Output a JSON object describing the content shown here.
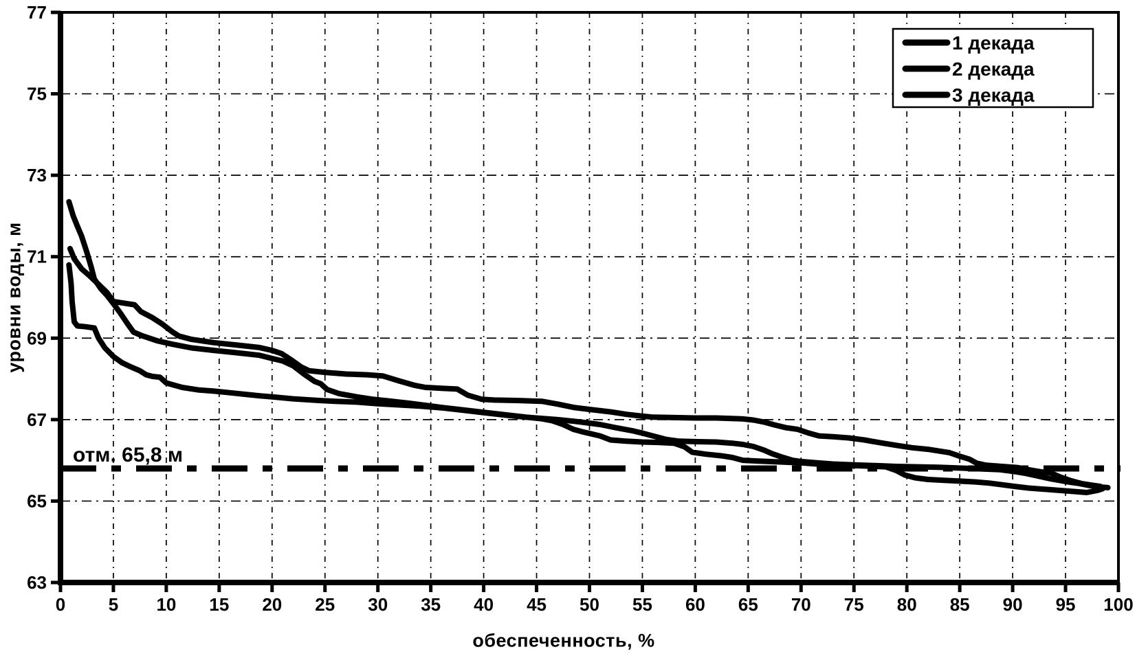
{
  "chart_data": {
    "type": "line",
    "title": "",
    "xlabel": "обеспеченность, %",
    "ylabel": "уровни воды, м",
    "xlim": [
      0,
      100
    ],
    "ylim": [
      63,
      77
    ],
    "xticks": [
      0,
      5,
      10,
      15,
      20,
      25,
      30,
      35,
      40,
      45,
      50,
      55,
      60,
      65,
      70,
      75,
      80,
      85,
      90,
      95,
      100
    ],
    "yticks": [
      63,
      65,
      67,
      69,
      71,
      73,
      75,
      77
    ],
    "grid": {
      "horizontal": [
        65,
        67,
        69,
        71,
        73,
        75
      ],
      "vertical": [
        5,
        10,
        15,
        20,
        25,
        30,
        35,
        40,
        45,
        50,
        55,
        60,
        65,
        70,
        75,
        80,
        85,
        90,
        95
      ]
    },
    "ink_color": "#000000",
    "background_color": "#ffffff",
    "reference_line": {
      "value": 65.8,
      "label": "отм. 65,8 м",
      "style": "dash-dot-thick"
    },
    "legend": {
      "position": "top-right",
      "entries": [
        "1 декада",
        "2 декада",
        "3 декада"
      ]
    },
    "series": [
      {
        "name": "1 декада",
        "color": "#000000",
        "points": [
          [
            0.8,
            72.35
          ],
          [
            1.2,
            72.0
          ],
          [
            1.6,
            71.75
          ],
          [
            2.0,
            71.5
          ],
          [
            2.5,
            71.1
          ],
          [
            2.9,
            70.75
          ],
          [
            3.2,
            70.45
          ],
          [
            3.8,
            70.22
          ],
          [
            4.4,
            70.05
          ],
          [
            5.0,
            69.85
          ],
          [
            5.7,
            69.6
          ],
          [
            6.4,
            69.33
          ],
          [
            6.9,
            69.15
          ],
          [
            7.7,
            69.06
          ],
          [
            9.2,
            68.93
          ],
          [
            10.6,
            68.85
          ],
          [
            12.4,
            68.76
          ],
          [
            14.5,
            68.7
          ],
          [
            16.7,
            68.64
          ],
          [
            18.8,
            68.58
          ],
          [
            20.0,
            68.5
          ],
          [
            21.0,
            68.44
          ],
          [
            22.0,
            68.32
          ],
          [
            23.0,
            68.12
          ],
          [
            24.0,
            67.94
          ],
          [
            24.6,
            67.88
          ],
          [
            25.2,
            67.74
          ],
          [
            26.3,
            67.64
          ],
          [
            28.0,
            67.56
          ],
          [
            29.5,
            67.5
          ],
          [
            31.0,
            67.46
          ],
          [
            33.0,
            67.4
          ],
          [
            34.5,
            67.35
          ],
          [
            36.0,
            67.3
          ],
          [
            38.0,
            67.24
          ],
          [
            40.0,
            67.18
          ],
          [
            42.0,
            67.12
          ],
          [
            44.0,
            67.06
          ],
          [
            45.5,
            67.02
          ],
          [
            46.5,
            66.97
          ],
          [
            47.5,
            66.88
          ],
          [
            48.5,
            66.76
          ],
          [
            49.5,
            66.69
          ],
          [
            51.0,
            66.6
          ],
          [
            52.0,
            66.5
          ],
          [
            53.5,
            66.47
          ],
          [
            55.0,
            66.45
          ],
          [
            56.5,
            66.44
          ],
          [
            58.0,
            66.42
          ],
          [
            59.0,
            66.33
          ],
          [
            59.7,
            66.2
          ],
          [
            61.0,
            66.15
          ],
          [
            62.5,
            66.11
          ],
          [
            63.5,
            66.07
          ],
          [
            64.5,
            66.0
          ],
          [
            66.0,
            65.98
          ],
          [
            68.0,
            65.96
          ],
          [
            70.0,
            65.94
          ],
          [
            72.0,
            65.9
          ],
          [
            74.0,
            65.88
          ],
          [
            76.0,
            65.86
          ],
          [
            78.0,
            65.84
          ],
          [
            79.0,
            65.75
          ],
          [
            79.8,
            65.64
          ],
          [
            80.8,
            65.57
          ],
          [
            82.0,
            65.53
          ],
          [
            83.5,
            65.51
          ],
          [
            85.0,
            65.49
          ],
          [
            86.5,
            65.47
          ],
          [
            87.8,
            65.44
          ],
          [
            89.0,
            65.4
          ],
          [
            90.2,
            65.36
          ],
          [
            91.5,
            65.32
          ],
          [
            93.0,
            65.29
          ],
          [
            94.5,
            65.26
          ],
          [
            96.0,
            65.23
          ],
          [
            97.0,
            65.21
          ],
          [
            98.0,
            65.26
          ],
          [
            98.5,
            65.3
          ]
        ]
      },
      {
        "name": "2 декада",
        "color": "#000000",
        "points": [
          [
            0.9,
            71.2
          ],
          [
            1.3,
            70.95
          ],
          [
            2.0,
            70.7
          ],
          [
            2.8,
            70.52
          ],
          [
            3.6,
            70.32
          ],
          [
            4.4,
            70.12
          ],
          [
            5.0,
            69.9
          ],
          [
            6.0,
            69.86
          ],
          [
            7.0,
            69.82
          ],
          [
            7.6,
            69.65
          ],
          [
            8.7,
            69.5
          ],
          [
            9.6,
            69.35
          ],
          [
            10.6,
            69.15
          ],
          [
            11.2,
            69.05
          ],
          [
            12.4,
            68.97
          ],
          [
            14.5,
            68.89
          ],
          [
            16.7,
            68.83
          ],
          [
            18.8,
            68.77
          ],
          [
            20.0,
            68.7
          ],
          [
            20.9,
            68.62
          ],
          [
            21.9,
            68.45
          ],
          [
            22.7,
            68.3
          ],
          [
            23.5,
            68.2
          ],
          [
            25.0,
            68.16
          ],
          [
            27.0,
            68.12
          ],
          [
            29.0,
            68.1
          ],
          [
            30.5,
            68.07
          ],
          [
            32.0,
            67.95
          ],
          [
            33.5,
            67.84
          ],
          [
            34.5,
            67.79
          ],
          [
            36.0,
            67.77
          ],
          [
            37.5,
            67.75
          ],
          [
            38.5,
            67.6
          ],
          [
            39.8,
            67.5
          ],
          [
            41.0,
            67.48
          ],
          [
            43.0,
            67.47
          ],
          [
            45.5,
            67.45
          ],
          [
            47.0,
            67.38
          ],
          [
            48.5,
            67.3
          ],
          [
            50.0,
            67.25
          ],
          [
            52.0,
            67.19
          ],
          [
            53.5,
            67.13
          ],
          [
            54.8,
            67.09
          ],
          [
            56.0,
            67.06
          ],
          [
            58.0,
            67.05
          ],
          [
            60.0,
            67.04
          ],
          [
            62.0,
            67.04
          ],
          [
            64.4,
            67.02
          ],
          [
            65.5,
            66.99
          ],
          [
            66.5,
            66.94
          ],
          [
            67.5,
            66.87
          ],
          [
            68.6,
            66.8
          ],
          [
            69.7,
            66.76
          ],
          [
            70.7,
            66.67
          ],
          [
            71.7,
            66.6
          ],
          [
            73.0,
            66.58
          ],
          [
            74.5,
            66.55
          ],
          [
            76.0,
            66.5
          ],
          [
            77.5,
            66.43
          ],
          [
            79.2,
            66.36
          ],
          [
            80.5,
            66.31
          ],
          [
            82.0,
            66.27
          ],
          [
            84.0,
            66.19
          ],
          [
            85.0,
            66.1
          ],
          [
            85.9,
            66.03
          ],
          [
            86.6,
            65.93
          ],
          [
            87.5,
            65.88
          ],
          [
            89.0,
            65.85
          ],
          [
            90.5,
            65.82
          ],
          [
            91.5,
            65.77
          ],
          [
            92.6,
            65.72
          ],
          [
            93.6,
            65.69
          ],
          [
            94.5,
            65.59
          ],
          [
            95.5,
            65.5
          ],
          [
            96.5,
            65.43
          ],
          [
            97.5,
            65.39
          ],
          [
            98.3,
            65.36
          ]
        ]
      },
      {
        "name": "3 декада",
        "color": "#000000",
        "points": [
          [
            0.8,
            70.8
          ],
          [
            1.0,
            70.35
          ],
          [
            1.1,
            69.9
          ],
          [
            1.3,
            69.4
          ],
          [
            1.6,
            69.3
          ],
          [
            2.4,
            69.28
          ],
          [
            3.2,
            69.25
          ],
          [
            3.6,
            69.0
          ],
          [
            4.2,
            68.76
          ],
          [
            5.0,
            68.55
          ],
          [
            5.8,
            68.4
          ],
          [
            6.6,
            68.3
          ],
          [
            7.5,
            68.2
          ],
          [
            8.1,
            68.1
          ],
          [
            8.7,
            68.06
          ],
          [
            9.4,
            68.04
          ],
          [
            10.0,
            67.9
          ],
          [
            11.5,
            67.79
          ],
          [
            13.0,
            67.73
          ],
          [
            14.5,
            67.7
          ],
          [
            16.0,
            67.66
          ],
          [
            17.5,
            67.62
          ],
          [
            19.0,
            67.58
          ],
          [
            20.0,
            67.56
          ],
          [
            22.0,
            67.51
          ],
          [
            24.4,
            67.47
          ],
          [
            26.0,
            67.45
          ],
          [
            28.0,
            67.43
          ],
          [
            30.0,
            67.39
          ],
          [
            32.0,
            67.36
          ],
          [
            34.0,
            67.33
          ],
          [
            36.0,
            67.29
          ],
          [
            38.0,
            67.23
          ],
          [
            40.0,
            67.17
          ],
          [
            42.0,
            67.11
          ],
          [
            44.0,
            67.06
          ],
          [
            45.5,
            67.03
          ],
          [
            47.0,
            67.0
          ],
          [
            48.5,
            66.96
          ],
          [
            49.5,
            66.93
          ],
          [
            51.0,
            66.88
          ],
          [
            52.5,
            66.8
          ],
          [
            54.0,
            66.73
          ],
          [
            54.8,
            66.68
          ],
          [
            56.0,
            66.6
          ],
          [
            57.3,
            66.51
          ],
          [
            58.5,
            66.47
          ],
          [
            60.0,
            66.46
          ],
          [
            62.0,
            66.45
          ],
          [
            63.5,
            66.42
          ],
          [
            64.5,
            66.39
          ],
          [
            65.5,
            66.34
          ],
          [
            66.5,
            66.25
          ],
          [
            67.3,
            66.16
          ],
          [
            68.2,
            66.08
          ],
          [
            69.2,
            66.0
          ],
          [
            70.0,
            65.97
          ],
          [
            71.5,
            65.94
          ],
          [
            73.0,
            65.91
          ],
          [
            75.0,
            65.89
          ],
          [
            77.0,
            65.87
          ],
          [
            79.0,
            65.85
          ],
          [
            81.0,
            65.84
          ],
          [
            83.0,
            65.83
          ],
          [
            85.0,
            65.81
          ],
          [
            87.0,
            65.79
          ],
          [
            88.8,
            65.77
          ],
          [
            90.0,
            65.73
          ],
          [
            91.2,
            65.68
          ],
          [
            92.3,
            65.62
          ],
          [
            93.5,
            65.55
          ],
          [
            95.0,
            65.48
          ],
          [
            96.3,
            65.43
          ],
          [
            97.3,
            65.38
          ],
          [
            98.5,
            65.34
          ],
          [
            99.0,
            65.33
          ]
        ]
      }
    ]
  }
}
